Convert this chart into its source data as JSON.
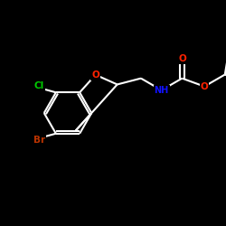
{
  "background_color": "#000000",
  "bond_color": "#ffffff",
  "bond_width": 1.5,
  "atom_colors": {
    "O": "#ff2200",
    "N": "#1111ff",
    "Cl": "#00cc00",
    "Br": "#bb3300",
    "C": "#ffffff",
    "H": "#ffffff"
  }
}
